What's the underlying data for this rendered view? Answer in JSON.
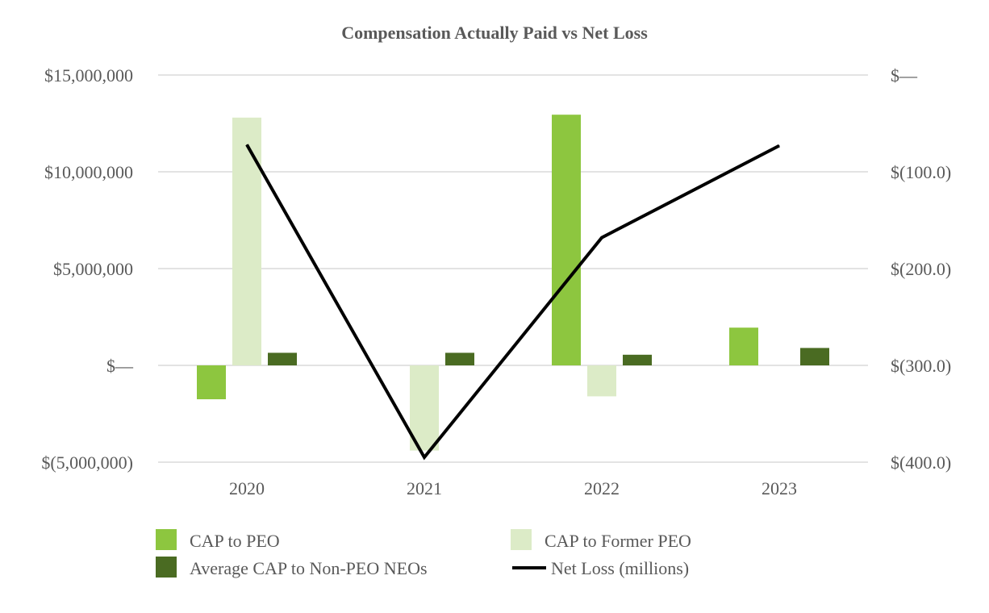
{
  "chart_data": {
    "type": "bar",
    "title": "Compensation Actually Paid vs Net Loss",
    "categories": [
      "2020",
      "2021",
      "2022",
      "2023"
    ],
    "y_left": {
      "min": -5000000,
      "max": 15000000,
      "step": 5000000,
      "tick_labels": [
        "$(5,000,000)",
        "$—",
        "$5,000,000",
        "$10,000,000",
        "$15,000,000"
      ]
    },
    "y_right": {
      "min": -400,
      "max": 0,
      "step": 100,
      "tick_labels": [
        "$(400.0)",
        "$(300.0)",
        "$(200.0)",
        "$(100.0)",
        "$—"
      ]
    },
    "series": [
      {
        "name": "CAP to PEO",
        "type": "bar",
        "axis": "left",
        "color": "#8dc63f",
        "values": [
          -1750000,
          null,
          12950000,
          1950000
        ]
      },
      {
        "name": "CAP to Former PEO",
        "type": "bar",
        "axis": "left",
        "color": "#dcebc7",
        "values": [
          12800000,
          -4400000,
          -1600000,
          null
        ]
      },
      {
        "name": "Average CAP to Non-PEO NEOs",
        "type": "bar",
        "axis": "left",
        "color": "#4a6b22",
        "values": [
          650000,
          650000,
          550000,
          900000
        ]
      },
      {
        "name": "Net Loss (millions)",
        "type": "line",
        "axis": "right",
        "color": "#000000",
        "values": [
          -72,
          -395,
          -168,
          -73
        ]
      }
    ],
    "legend": {
      "position": "bottom",
      "items": [
        {
          "label": "CAP to PEO",
          "marker": "box",
          "color": "#8dc63f"
        },
        {
          "label": "CAP to Former PEO",
          "marker": "box",
          "color": "#dcebc7"
        },
        {
          "label": "Average CAP to Non-PEO NEOs",
          "marker": "box",
          "color": "#4a6b22"
        },
        {
          "label": "Net Loss (millions)",
          "marker": "line",
          "color": "#000000"
        }
      ]
    }
  }
}
